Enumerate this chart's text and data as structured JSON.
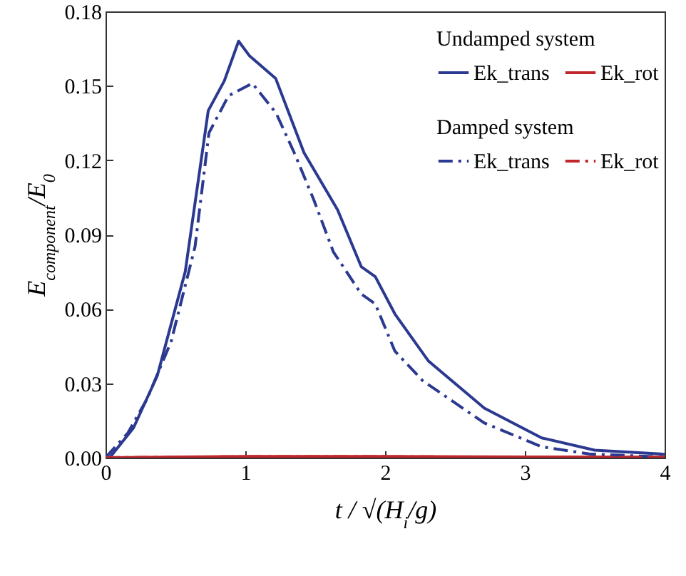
{
  "chart_data": {
    "type": "line",
    "xlabel": "t / √(H$_{i}$/g)",
    "ylabel": "E$_{component}$/E$_{0}$",
    "xlim": [
      0,
      4
    ],
    "xticks": [
      0,
      1,
      2,
      3,
      4
    ],
    "ylim": [
      0,
      0.18
    ],
    "yticks": [
      {
        "value": 0,
        "label": "0.00"
      },
      {
        "value": 0.03,
        "label": "0.03"
      },
      {
        "value": 0.06,
        "label": "0.06"
      },
      {
        "value": 0.09,
        "label": "0.09"
      },
      {
        "value": 0.12,
        "label": "0.12"
      },
      {
        "value": 0.15,
        "label": "0.15"
      },
      {
        "value": 0.18,
        "label": "0.18"
      }
    ],
    "legend": "top right",
    "grid": false,
    "marker": "none",
    "annotations": [
      "Undamped system",
      "Damped system"
    ],
    "series": [
      {
        "name": "Ek_trans",
        "color": "#2b3990",
        "line_style": "solid",
        "x": [
          0,
          0.03,
          0.2,
          0.37,
          0.57,
          0.735,
          0.85,
          0.952,
          1.031,
          1.217,
          1.42,
          1.66,
          1.83,
          1.93,
          2.07,
          2.31,
          2.71,
          3.12,
          3.5,
          3.97,
          4
        ],
        "values": [
          0,
          0,
          0.012,
          0.033,
          0.075,
          0.14,
          0.152,
          0.168,
          0.162,
          0.153,
          0.123,
          0.1,
          0.077,
          0.073,
          0.058,
          0.039,
          0.02,
          0.008,
          0.003,
          0.0015,
          0.0013
        ]
      },
      {
        "name": "Ek_rot",
        "color": "#c0272d",
        "line_style": "solid",
        "x": [
          0,
          1,
          2,
          3,
          4
        ],
        "values": [
          0,
          0.0005,
          0.0005,
          0.0003,
          0.0002
        ]
      },
      {
        "name": "Ek_trans",
        "color": "#2b3990",
        "line_style": "dashed",
        "x": [
          0,
          0.16,
          0.3,
          0.47,
          0.64,
          0.74,
          0.88,
          1.05,
          1.22,
          1.35,
          1.49,
          1.63,
          1.83,
          1.93,
          2.07,
          2.27,
          2.71,
          3.12,
          3.46,
          3.97,
          4
        ],
        "values": [
          0,
          0.01,
          0.024,
          0.047,
          0.085,
          0.131,
          0.146,
          0.151,
          0.139,
          0.123,
          0.104,
          0.083,
          0.066,
          0.062,
          0.043,
          0.031,
          0.014,
          0.0044,
          0.0015,
          0.0003,
          0.0003
        ]
      },
      {
        "name": "Ek_rot",
        "color": "#c0272d",
        "line_style": "dashed",
        "x": [
          0,
          1,
          2,
          3,
          4
        ],
        "values": [
          0,
          0.0004,
          0.0004,
          0.0002,
          0.0001
        ]
      }
    ]
  }
}
